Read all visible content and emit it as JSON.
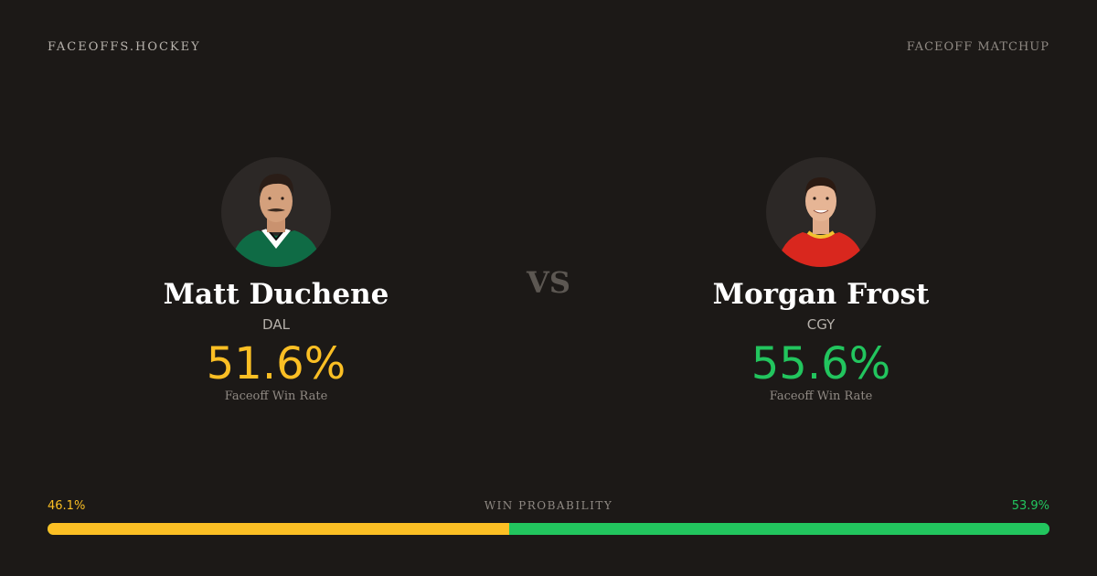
{
  "header": {
    "site_name": "FACEOFFS.HOCKEY",
    "page_label": "FACEOFF MATCHUP"
  },
  "players": [
    {
      "name": "Matt Duchene",
      "team": "DAL",
      "win_rate": "51.6%",
      "win_rate_label": "Faceoff Win Rate",
      "accent_color": "#fbbf24",
      "jersey_color": "#0f6b45"
    },
    {
      "name": "Morgan Frost",
      "team": "CGY",
      "win_rate": "55.6%",
      "win_rate_label": "Faceoff Win Rate",
      "accent_color": "#22c55e",
      "jersey_color": "#d9271e"
    }
  ],
  "vs_label": "VS",
  "win_probability": {
    "title": "WIN PROBABILITY",
    "left_label": "46.1%",
    "right_label": "53.9%",
    "left_fraction": 0.461,
    "right_fraction": 0.539
  }
}
